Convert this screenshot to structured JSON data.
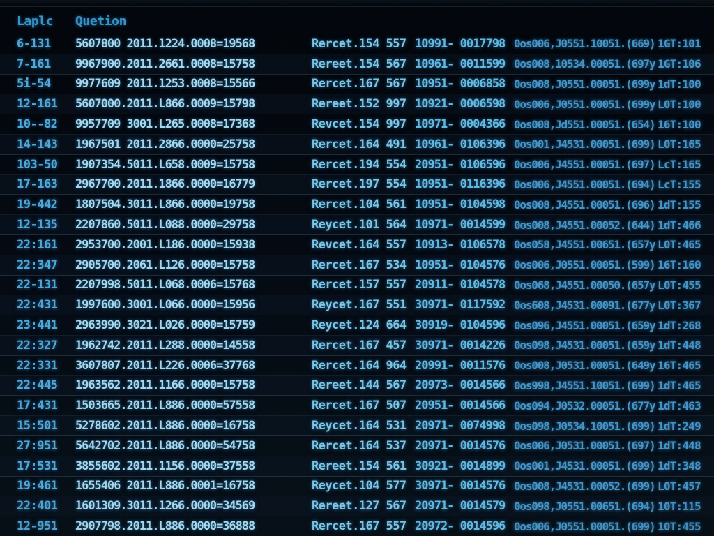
{
  "colors": {
    "background": "#05090f",
    "header_text": "#3794c8",
    "bright_text": "#a4d6ec",
    "mid_text": "#7ac6e4",
    "dim_text": "#4494c8"
  },
  "header": {
    "col1_label": "Laplc",
    "col2_label": "Quetion"
  },
  "table": {
    "rows": [
      [
        "6-131",
        "5607800 2011.1224.0008=19568",
        "Rercet.154 557",
        "10991- 0017798",
        "0os006,J0551.10051.(669)",
        "1GT:101"
      ],
      [
        "7-161",
        "9967900.2011.2661.0008=15758",
        "Rereet.154 567",
        "10961- 0011599",
        "0os008,10534.00051.(697y",
        "1GT:106"
      ],
      [
        "5i-54",
        "9977609 2011.1253.0008=15566",
        "Rercet.167 567",
        "10951- 0006858",
        "0os008,J0551.00051.(699y",
        "1dT:100"
      ],
      [
        "12-161",
        "5607000.2011.L866.0009=15798",
        "Rereet.152 997",
        "10921- 0006598",
        "0os006,J0551.00051.(699y",
        "L0T:100"
      ],
      [
        "10--82",
        "9957709 3001.L265.0008=17368",
        "Revcet.154 997",
        "10971- 0004366",
        "0os008,Jd551.00051.(654)",
        "16T:100"
      ],
      [
        "14-143",
        "1967501 2011.2866.0000=25758",
        "Rercet.164 491",
        "10961- 0106396",
        "0os001,J4531.00051.(699)",
        "L0T:165"
      ],
      [
        "103-50",
        "1907354.5011.L658.0009=15758",
        "Rercet.194 554",
        "20951- 0106596",
        "0os006,J4551.00051.(697)",
        "LcT:165"
      ],
      [
        "17-163",
        "2967700.2011.1866.0000=16779",
        "Rercet.197 554",
        "10951- 0116396",
        "0os006,J4551.00051.(694)",
        "LcT:155"
      ],
      [
        "19-442",
        "1807504.3011.L866.0000=19758",
        "Rercet.104 561",
        "10951- 0104598",
        "0os008,J4551.00051.(696)",
        "1dT:155"
      ],
      [
        "12-135",
        "2207860.5011.L088.0000=29758",
        "Reycet.101 564",
        "10971- 0014599",
        "0os008,J4551.00052.(644)",
        "1dT:466"
      ],
      [
        "22:161",
        "2953700.2001.L186.0000=15938",
        "Revcet.164 557",
        "10913- 0106578",
        "0os058,J4551.00651.(657y",
        "L0T:465"
      ],
      [
        "22:347",
        "2905700.2061.L126.0000=15758",
        "Rercet.167 534",
        "10951- 0104576",
        "0os006,J0551.00051.(599)",
        "16T:160"
      ],
      [
        "22-131",
        "2207998.5011.L068.0006=15768",
        "Rercet.157 557",
        "20911- 0104578",
        "0os068,J4551.00050.(657y",
        "L0T:455"
      ],
      [
        "22:431",
        "1997600.3001.L066.0000=15956",
        "Reycet.167 551",
        "30971- 0117592",
        "0os608,J4531.00091.(677y",
        "L0T:367"
      ],
      [
        "23:441",
        "2963990.3021.L026.0000=15759",
        "Reycet.124 664",
        "30919- 0104596",
        "0os096,J4551.00051.(659y",
        "1dT:268"
      ],
      [
        "22:327",
        "1962742.2011.L288.0000=14558",
        "Rercet.167 457",
        "30971- 0014226",
        "0os098,J4531.00051.(659y",
        "1dT:448"
      ],
      [
        "22:331",
        "3607807.2011.L226.0006=37768",
        "Rercet.164 964",
        "20991- 0011576",
        "0os008,J0531.00051.(649y",
        "16T:465"
      ],
      [
        "22:445",
        "1963562.2011.1166.0000=15758",
        "Rereet.144 567",
        "20973- 0014566",
        "0os998,J4551.10051.(699)",
        "1dT:465"
      ],
      [
        "17:431",
        "1503665.2011.L886.0000=57558",
        "Rercet.167 507",
        "20951- 0014566",
        "0os094,J0532.00051.(677y",
        "1dT:463"
      ],
      [
        "15:501",
        "5278602.2011.L886.0000=16758",
        "Reycet.164 531",
        "20971- 0074998",
        "0os098,J0534.10051.(699)",
        "1dT:249"
      ],
      [
        "27:951",
        "5642702.2011.L886.0000=54758",
        "Rercet.164 537",
        "20971- 0014576",
        "0os006,J0531.00051.(697)",
        "1dT:448"
      ],
      [
        "17:531",
        "3855602.2011.1156.0000=37558",
        "Rereet.154 561",
        "30921- 0014899",
        "0os001,J4531.00051.(699)",
        "1dT:348"
      ],
      [
        "19:461",
        "1655406 2011.L886.0001=16758",
        "Reycet.104 577",
        "30971- 0014576",
        "0os008,J4531.00052.(699)",
        "L0T:457"
      ],
      [
        "22:401",
        "1601309.3011.1266.0000=34569",
        "Rereet.127 567",
        "20971- 0014579",
        "0os098,J0551.00651.(694)",
        "10T:115"
      ],
      [
        "12-951",
        "2907798.2011.L886.0000=36888",
        "Rercet.167 557",
        "20972- 0014596",
        "0os006,J0551.00051.(699)",
        "10T:455"
      ]
    ]
  }
}
